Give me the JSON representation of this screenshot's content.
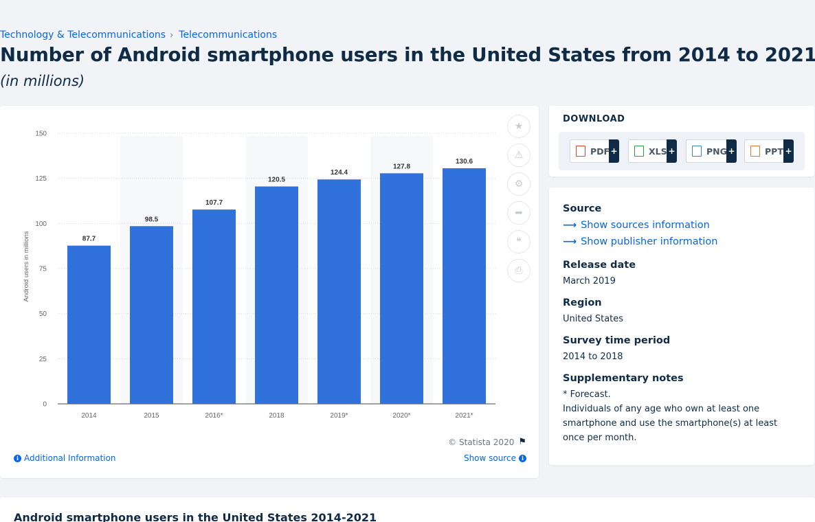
{
  "breadcrumb": {
    "items": [
      "Technology & Telecommunications",
      "Telecommunications"
    ],
    "separator": "›"
  },
  "header": {
    "title": "Number of Android smartphone users in the United States from 2014 to 2021",
    "subtitle": "(in millions)"
  },
  "chart_data": {
    "type": "bar",
    "categories": [
      "2014",
      "2015",
      "2016*",
      "2018",
      "2019*",
      "2020*",
      "2021*"
    ],
    "values": [
      87.7,
      98.5,
      107.7,
      120.5,
      124.4,
      127.8,
      130.6
    ],
    "data_labels": [
      "87.7",
      "98.5",
      "107.7",
      "120.5",
      "124.4",
      "127.8",
      "130.6"
    ],
    "ylabel": "Android users in millions",
    "ylim": [
      0,
      150
    ],
    "yticks": [
      0,
      25,
      50,
      75,
      100,
      125,
      150
    ],
    "grid": true,
    "bar_color": "#3171db"
  },
  "chart_tools": {
    "icons": [
      "star-icon",
      "bell-icon",
      "gear-icon",
      "share-icon",
      "quote-icon",
      "print-icon"
    ]
  },
  "chart_footer": {
    "copyright": "© Statista 2020",
    "additional_info": "Additional Information",
    "show_source": "Show source"
  },
  "download": {
    "title": "DOWNLOAD",
    "formats": [
      {
        "label": "PDF",
        "color": "#e8412c"
      },
      {
        "label": "XLS",
        "color": "#2e9a43"
      },
      {
        "label": "PNG",
        "color": "#3a86c8"
      },
      {
        "label": "PPT",
        "color": "#e7762d"
      }
    ],
    "plus": "+"
  },
  "meta": {
    "source_label": "Source",
    "show_sources": "Show sources information",
    "show_publisher": "Show publisher information",
    "release_date_label": "Release date",
    "release_date": "March 2019",
    "region_label": "Region",
    "region": "United States",
    "survey_label": "Survey time period",
    "survey": "2014 to 2018",
    "notes_label": "Supplementary notes",
    "note_forecast": "* Forecast.",
    "note_text": "Individuals of any age who own at least one smartphone and use the smartphone(s) at least once per month."
  },
  "bottom": {
    "title": "Android smartphone users in the United States 2014-2021"
  }
}
